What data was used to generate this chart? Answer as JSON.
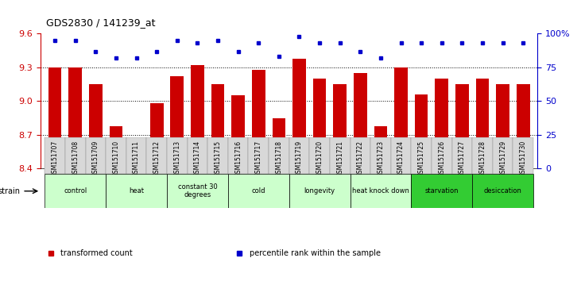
{
  "title": "GDS2830 / 141239_at",
  "samples": [
    "GSM151707",
    "GSM151708",
    "GSM151709",
    "GSM151710",
    "GSM151711",
    "GSM151712",
    "GSM151713",
    "GSM151714",
    "GSM151715",
    "GSM151716",
    "GSM151717",
    "GSM151718",
    "GSM151719",
    "GSM151720",
    "GSM151721",
    "GSM151722",
    "GSM151723",
    "GSM151724",
    "GSM151725",
    "GSM151726",
    "GSM151727",
    "GSM151728",
    "GSM151729",
    "GSM151730"
  ],
  "bar_values": [
    9.3,
    9.3,
    9.15,
    8.78,
    8.65,
    8.98,
    9.22,
    9.32,
    9.15,
    9.05,
    9.28,
    8.85,
    9.38,
    9.2,
    9.15,
    9.25,
    8.78,
    9.3,
    9.06,
    9.2,
    9.15,
    9.2,
    9.15,
    9.15
  ],
  "dot_values_pct": [
    95,
    95,
    87,
    82,
    82,
    87,
    95,
    93,
    95,
    87,
    93,
    83,
    98,
    93,
    93,
    87,
    82,
    93,
    93,
    93,
    93,
    93,
    93,
    93
  ],
  "ylim_left": [
    8.4,
    9.6
  ],
  "ylim_right": [
    0,
    100
  ],
  "yticks_left": [
    8.4,
    8.7,
    9.0,
    9.3,
    9.6
  ],
  "yticks_right": [
    0,
    25,
    50,
    75,
    100
  ],
  "bar_color": "#cc0000",
  "dot_color": "#0000cc",
  "groups": [
    {
      "label": "control",
      "start": 0,
      "end": 2,
      "color": "#ccffcc"
    },
    {
      "label": "heat",
      "start": 3,
      "end": 5,
      "color": "#ccffcc"
    },
    {
      "label": "constant 30\ndegrees",
      "start": 6,
      "end": 8,
      "color": "#ccffcc"
    },
    {
      "label": "cold",
      "start": 9,
      "end": 11,
      "color": "#ccffcc"
    },
    {
      "label": "longevity",
      "start": 12,
      "end": 14,
      "color": "#ccffcc"
    },
    {
      "label": "heat knock down",
      "start": 15,
      "end": 17,
      "color": "#ccffcc"
    },
    {
      "label": "starvation",
      "start": 18,
      "end": 20,
      "color": "#33cc33"
    },
    {
      "label": "desiccation",
      "start": 21,
      "end": 23,
      "color": "#33cc33"
    }
  ],
  "legend_items": [
    {
      "label": "transformed count",
      "color": "#cc0000"
    },
    {
      "label": "percentile rank within the sample",
      "color": "#0000cc"
    }
  ],
  "tick_label_color_left": "#cc0000",
  "tick_label_color_right": "#0000cc",
  "strain_label": "strain"
}
